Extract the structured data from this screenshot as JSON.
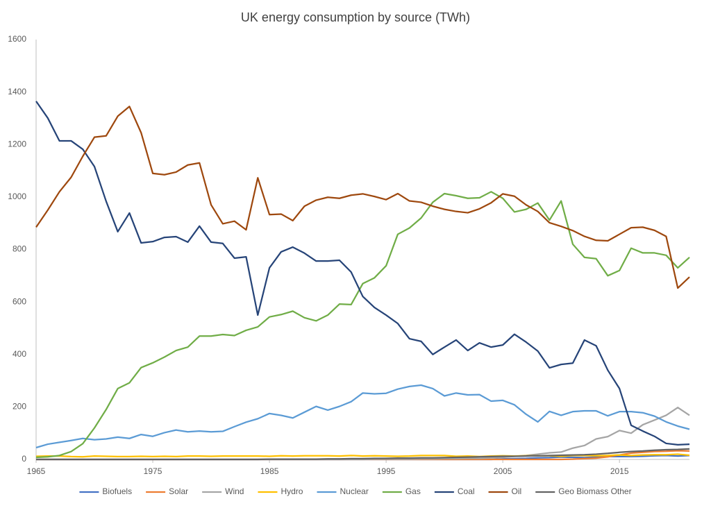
{
  "chart_data": {
    "type": "line",
    "title": "UK energy consumption by source (TWh)",
    "x": [
      1965,
      1966,
      1967,
      1968,
      1969,
      1970,
      1971,
      1972,
      1973,
      1974,
      1975,
      1976,
      1977,
      1978,
      1979,
      1980,
      1981,
      1982,
      1983,
      1984,
      1985,
      1986,
      1987,
      1988,
      1989,
      1990,
      1991,
      1992,
      1993,
      1994,
      1995,
      1996,
      1997,
      1998,
      1999,
      2000,
      2001,
      2002,
      2003,
      2004,
      2005,
      2006,
      2007,
      2008,
      2009,
      2010,
      2011,
      2012,
      2013,
      2014,
      2015,
      2016,
      2017,
      2018,
      2019,
      2020,
      2021
    ],
    "xlim": [
      1965,
      2021
    ],
    "xticks": [
      1965,
      1975,
      1985,
      1995,
      2005,
      2015
    ],
    "ylim": [
      0,
      1600
    ],
    "yticks": [
      0,
      200,
      400,
      600,
      800,
      1000,
      1200,
      1400,
      1600
    ],
    "grid": false,
    "legend": "bottom",
    "series": [
      {
        "name": "Biofuels",
        "color": "#4472c4",
        "values": [
          0,
          0,
          0,
          0,
          0,
          0,
          0,
          0,
          0,
          0,
          0,
          0,
          0,
          0,
          0,
          0,
          0,
          0,
          0,
          0,
          0,
          0,
          0,
          0,
          0,
          0,
          0,
          0,
          0,
          0,
          0,
          0,
          0,
          0,
          0,
          0,
          0,
          0,
          0,
          0,
          2,
          3,
          4,
          6,
          7,
          9,
          8,
          7,
          9,
          11,
          11,
          11,
          12,
          14,
          15,
          13,
          15
        ]
      },
      {
        "name": "Solar",
        "color": "#ed7d31",
        "values": [
          0,
          0,
          0,
          0,
          0,
          0,
          0,
          0,
          0,
          0,
          0,
          0,
          0,
          0,
          0,
          0,
          0,
          0,
          0,
          0,
          0,
          0,
          0,
          0,
          0,
          0,
          0,
          0,
          0,
          0,
          0,
          0,
          0,
          0,
          0,
          0,
          0,
          0,
          0,
          0,
          0,
          0,
          0,
          0,
          0,
          0,
          1,
          3,
          5,
          10,
          17,
          24,
          27,
          30,
          31,
          33,
          32
        ]
      },
      {
        "name": "Wind",
        "color": "#a5a5a5",
        "values": [
          0,
          0,
          0,
          0,
          0,
          0,
          0,
          0,
          0,
          0,
          0,
          0,
          0,
          0,
          0,
          0,
          0,
          0,
          0,
          0,
          0,
          0,
          0,
          0,
          0,
          0,
          0,
          0,
          0,
          1,
          1,
          1,
          1,
          2,
          2,
          3,
          3,
          4,
          4,
          6,
          8,
          12,
          15,
          20,
          25,
          28,
          43,
          53,
          78,
          87,
          110,
          100,
          132,
          150,
          168,
          198,
          168
        ]
      },
      {
        "name": "Hydro",
        "color": "#ffc000",
        "values": [
          12,
          13,
          13,
          11,
          10,
          13,
          12,
          11,
          11,
          12,
          11,
          12,
          11,
          13,
          13,
          12,
          13,
          13,
          13,
          13,
          12,
          14,
          13,
          14,
          14,
          14,
          13,
          15,
          13,
          14,
          13,
          12,
          13,
          15,
          15,
          15,
          12,
          13,
          11,
          13,
          14,
          13,
          14,
          14,
          14,
          12,
          15,
          15,
          14,
          15,
          17,
          15,
          17,
          18,
          18,
          20,
          16
        ]
      },
      {
        "name": "Nuclear",
        "color": "#5b9bd5",
        "values": [
          45,
          58,
          65,
          72,
          80,
          75,
          78,
          85,
          80,
          95,
          88,
          102,
          112,
          105,
          108,
          105,
          107,
          125,
          142,
          155,
          175,
          168,
          158,
          180,
          202,
          188,
          202,
          220,
          253,
          250,
          252,
          268,
          278,
          283,
          270,
          242,
          253,
          246,
          247,
          222,
          225,
          208,
          172,
          143,
          183,
          168,
          182,
          185,
          185,
          166,
          182,
          182,
          178,
          165,
          143,
          127,
          115
        ]
      },
      {
        "name": "Gas",
        "color": "#70ad47",
        "values": [
          8,
          10,
          15,
          30,
          60,
          120,
          190,
          270,
          292,
          350,
          368,
          390,
          415,
          428,
          470,
          470,
          476,
          472,
          492,
          505,
          543,
          552,
          565,
          540,
          528,
          550,
          592,
          590,
          670,
          692,
          738,
          858,
          882,
          920,
          980,
          1013,
          1005,
          995,
          997,
          1020,
          995,
          943,
          953,
          977,
          912,
          985,
          820,
          770,
          765,
          700,
          720,
          805,
          787,
          787,
          778,
          730,
          770
        ]
      },
      {
        "name": "Coal",
        "color": "#264478",
        "values": [
          1365,
          1301,
          1214,
          1214,
          1182,
          1116,
          984,
          868,
          939,
          825,
          830,
          846,
          849,
          828,
          889,
          828,
          823,
          767,
          772,
          550,
          730,
          791,
          809,
          786,
          756,
          756,
          759,
          714,
          621,
          579,
          550,
          518,
          460,
          450,
          400,
          428,
          455,
          415,
          444,
          428,
          436,
          477,
          447,
          413,
          349,
          362,
          367,
          455,
          433,
          340,
          270,
          130,
          108,
          88,
          61,
          56,
          58
        ]
      },
      {
        "name": "Oil",
        "color": "#9e480e",
        "values": [
          885,
          950,
          1020,
          1075,
          1155,
          1228,
          1233,
          1308,
          1345,
          1245,
          1090,
          1085,
          1095,
          1122,
          1130,
          970,
          898,
          908,
          875,
          1073,
          933,
          935,
          910,
          965,
          988,
          999,
          995,
          1007,
          1012,
          1002,
          990,
          1013,
          985,
          980,
          965,
          953,
          945,
          940,
          955,
          978,
          1012,
          1003,
          970,
          945,
          902,
          888,
          872,
          850,
          835,
          833,
          858,
          883,
          885,
          873,
          850,
          653,
          695
        ]
      },
      {
        "name": "Geo Biomass Other",
        "color": "#636363",
        "values": [
          0,
          0,
          0,
          0,
          0,
          0,
          0,
          0,
          0,
          0,
          0,
          0,
          0,
          0,
          0,
          0,
          0,
          0,
          0,
          0,
          1,
          1,
          1,
          1,
          1,
          2,
          2,
          3,
          3,
          4,
          4,
          5,
          5,
          6,
          6,
          7,
          8,
          9,
          10,
          11,
          12,
          12,
          13,
          14,
          15,
          16,
          17,
          18,
          20,
          23,
          27,
          30,
          32,
          35,
          37,
          38,
          40
        ]
      }
    ]
  }
}
